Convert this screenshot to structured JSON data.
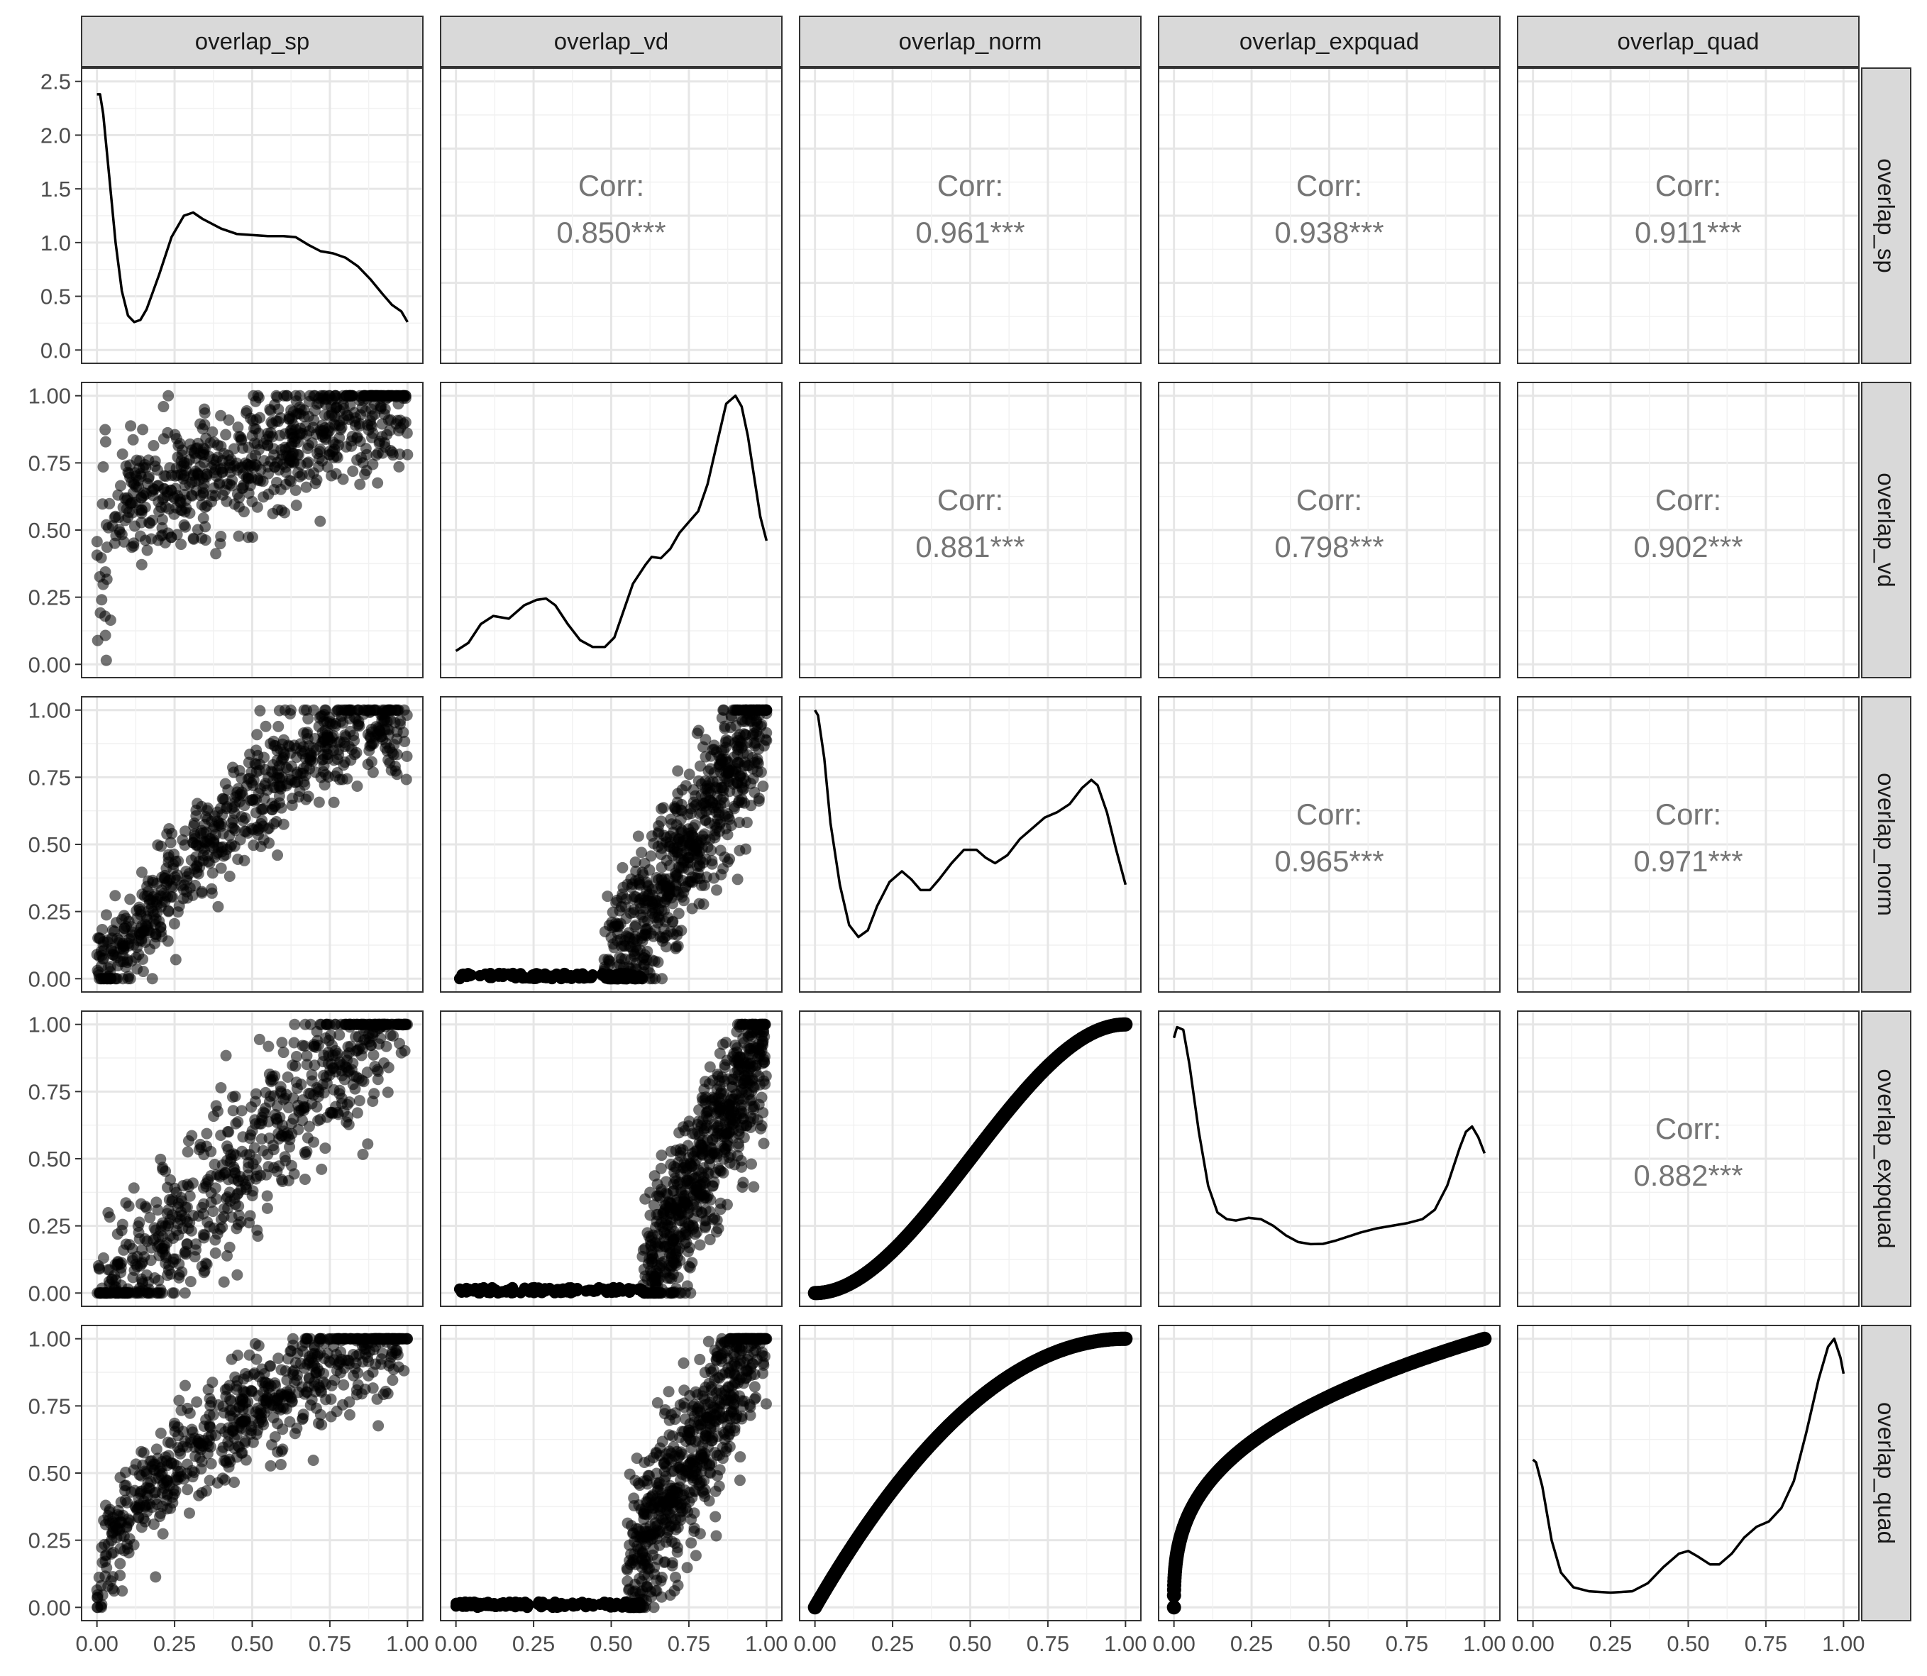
{
  "chart_data": {
    "type": "scatter",
    "variables": [
      "overlap_sp",
      "overlap_vd",
      "overlap_norm",
      "overlap_expquad",
      "overlap_quad"
    ],
    "axis_ticks": [
      "0.00",
      "0.25",
      "0.50",
      "0.75",
      "1.00"
    ],
    "x_range": [
      0,
      1
    ],
    "grid": true,
    "density_panel_1": {
      "y_ticks": [
        "0.0",
        "0.5",
        "1.0",
        "1.5",
        "2.0",
        "2.5"
      ],
      "y_range": [
        0,
        2.5
      ],
      "curve": [
        [
          0.0,
          2.38
        ],
        [
          0.01,
          2.38
        ],
        [
          0.02,
          2.2
        ],
        [
          0.04,
          1.6
        ],
        [
          0.06,
          1.0
        ],
        [
          0.08,
          0.55
        ],
        [
          0.1,
          0.32
        ],
        [
          0.12,
          0.26
        ],
        [
          0.14,
          0.28
        ],
        [
          0.16,
          0.38
        ],
        [
          0.2,
          0.7
        ],
        [
          0.24,
          1.05
        ],
        [
          0.28,
          1.25
        ],
        [
          0.31,
          1.28
        ],
        [
          0.34,
          1.22
        ],
        [
          0.4,
          1.13
        ],
        [
          0.45,
          1.08
        ],
        [
          0.5,
          1.07
        ],
        [
          0.55,
          1.06
        ],
        [
          0.6,
          1.06
        ],
        [
          0.64,
          1.05
        ],
        [
          0.68,
          0.98
        ],
        [
          0.72,
          0.92
        ],
        [
          0.76,
          0.9
        ],
        [
          0.8,
          0.86
        ],
        [
          0.84,
          0.78
        ],
        [
          0.88,
          0.66
        ],
        [
          0.92,
          0.52
        ],
        [
          0.95,
          0.42
        ],
        [
          0.98,
          0.36
        ],
        [
          1.0,
          0.26
        ]
      ]
    },
    "densities": [
      {
        "variable": "overlap_vd",
        "curve": [
          [
            0.0,
            0.05
          ],
          [
            0.04,
            0.08
          ],
          [
            0.08,
            0.15
          ],
          [
            0.12,
            0.18
          ],
          [
            0.17,
            0.17
          ],
          [
            0.22,
            0.22
          ],
          [
            0.26,
            0.24
          ],
          [
            0.29,
            0.245
          ],
          [
            0.32,
            0.22
          ],
          [
            0.36,
            0.15
          ],
          [
            0.4,
            0.09
          ],
          [
            0.44,
            0.065
          ],
          [
            0.48,
            0.065
          ],
          [
            0.51,
            0.1
          ],
          [
            0.54,
            0.2
          ],
          [
            0.57,
            0.3
          ],
          [
            0.61,
            0.37
          ],
          [
            0.63,
            0.4
          ],
          [
            0.66,
            0.395
          ],
          [
            0.69,
            0.43
          ],
          [
            0.72,
            0.49
          ],
          [
            0.75,
            0.53
          ],
          [
            0.78,
            0.57
          ],
          [
            0.81,
            0.67
          ],
          [
            0.84,
            0.82
          ],
          [
            0.87,
            0.97
          ],
          [
            0.9,
            1.0
          ],
          [
            0.92,
            0.96
          ],
          [
            0.94,
            0.85
          ],
          [
            0.96,
            0.7
          ],
          [
            0.98,
            0.55
          ],
          [
            1.0,
            0.46
          ]
        ]
      },
      {
        "variable": "overlap_norm",
        "curve": [
          [
            0.0,
            1.0
          ],
          [
            0.01,
            0.98
          ],
          [
            0.03,
            0.82
          ],
          [
            0.05,
            0.58
          ],
          [
            0.08,
            0.35
          ],
          [
            0.11,
            0.2
          ],
          [
            0.14,
            0.155
          ],
          [
            0.17,
            0.18
          ],
          [
            0.2,
            0.27
          ],
          [
            0.24,
            0.36
          ],
          [
            0.28,
            0.4
          ],
          [
            0.31,
            0.37
          ],
          [
            0.34,
            0.33
          ],
          [
            0.37,
            0.33
          ],
          [
            0.4,
            0.37
          ],
          [
            0.44,
            0.43
          ],
          [
            0.48,
            0.48
          ],
          [
            0.52,
            0.48
          ],
          [
            0.55,
            0.45
          ],
          [
            0.58,
            0.43
          ],
          [
            0.62,
            0.46
          ],
          [
            0.66,
            0.52
          ],
          [
            0.7,
            0.56
          ],
          [
            0.74,
            0.6
          ],
          [
            0.78,
            0.62
          ],
          [
            0.82,
            0.65
          ],
          [
            0.86,
            0.71
          ],
          [
            0.89,
            0.74
          ],
          [
            0.91,
            0.72
          ],
          [
            0.94,
            0.62
          ],
          [
            0.97,
            0.48
          ],
          [
            1.0,
            0.35
          ]
        ]
      },
      {
        "variable": "overlap_expquad",
        "curve": [
          [
            0.0,
            0.95
          ],
          [
            0.01,
            0.99
          ],
          [
            0.03,
            0.98
          ],
          [
            0.05,
            0.85
          ],
          [
            0.08,
            0.6
          ],
          [
            0.11,
            0.4
          ],
          [
            0.14,
            0.3
          ],
          [
            0.17,
            0.275
          ],
          [
            0.2,
            0.27
          ],
          [
            0.24,
            0.28
          ],
          [
            0.28,
            0.275
          ],
          [
            0.32,
            0.25
          ],
          [
            0.36,
            0.215
          ],
          [
            0.4,
            0.19
          ],
          [
            0.44,
            0.182
          ],
          [
            0.48,
            0.183
          ],
          [
            0.52,
            0.195
          ],
          [
            0.56,
            0.21
          ],
          [
            0.6,
            0.225
          ],
          [
            0.65,
            0.24
          ],
          [
            0.7,
            0.25
          ],
          [
            0.75,
            0.26
          ],
          [
            0.8,
            0.275
          ],
          [
            0.84,
            0.31
          ],
          [
            0.88,
            0.4
          ],
          [
            0.92,
            0.54
          ],
          [
            0.94,
            0.6
          ],
          [
            0.96,
            0.62
          ],
          [
            0.98,
            0.58
          ],
          [
            1.0,
            0.52
          ]
        ]
      },
      {
        "variable": "overlap_quad",
        "curve": [
          [
            0.0,
            0.55
          ],
          [
            0.01,
            0.54
          ],
          [
            0.03,
            0.45
          ],
          [
            0.06,
            0.25
          ],
          [
            0.09,
            0.13
          ],
          [
            0.13,
            0.075
          ],
          [
            0.18,
            0.06
          ],
          [
            0.25,
            0.055
          ],
          [
            0.32,
            0.06
          ],
          [
            0.37,
            0.09
          ],
          [
            0.42,
            0.15
          ],
          [
            0.47,
            0.2
          ],
          [
            0.5,
            0.21
          ],
          [
            0.53,
            0.19
          ],
          [
            0.57,
            0.16
          ],
          [
            0.6,
            0.16
          ],
          [
            0.64,
            0.2
          ],
          [
            0.68,
            0.26
          ],
          [
            0.72,
            0.3
          ],
          [
            0.76,
            0.32
          ],
          [
            0.8,
            0.37
          ],
          [
            0.84,
            0.47
          ],
          [
            0.88,
            0.65
          ],
          [
            0.92,
            0.85
          ],
          [
            0.95,
            0.97
          ],
          [
            0.97,
            1.0
          ],
          [
            0.99,
            0.93
          ],
          [
            1.0,
            0.87
          ]
        ]
      }
    ],
    "correlations": [
      {
        "row": 0,
        "col": 1,
        "label": "Corr:",
        "value": "0.850***"
      },
      {
        "row": 0,
        "col": 2,
        "label": "Corr:",
        "value": "0.961***"
      },
      {
        "row": 0,
        "col": 3,
        "label": "Corr:",
        "value": "0.938***"
      },
      {
        "row": 0,
        "col": 4,
        "label": "Corr:",
        "value": "0.911***"
      },
      {
        "row": 1,
        "col": 2,
        "label": "Corr:",
        "value": "0.881***"
      },
      {
        "row": 1,
        "col": 3,
        "label": "Corr:",
        "value": "0.798***"
      },
      {
        "row": 1,
        "col": 4,
        "label": "Corr:",
        "value": "0.902***"
      },
      {
        "row": 2,
        "col": 3,
        "label": "Corr:",
        "value": "0.965***"
      },
      {
        "row": 2,
        "col": 4,
        "label": "Corr:",
        "value": "0.971***"
      },
      {
        "row": 3,
        "col": 4,
        "label": "Corr:",
        "value": "0.882***"
      }
    ],
    "point_color": "#000000",
    "point_opacity": 0.55
  }
}
